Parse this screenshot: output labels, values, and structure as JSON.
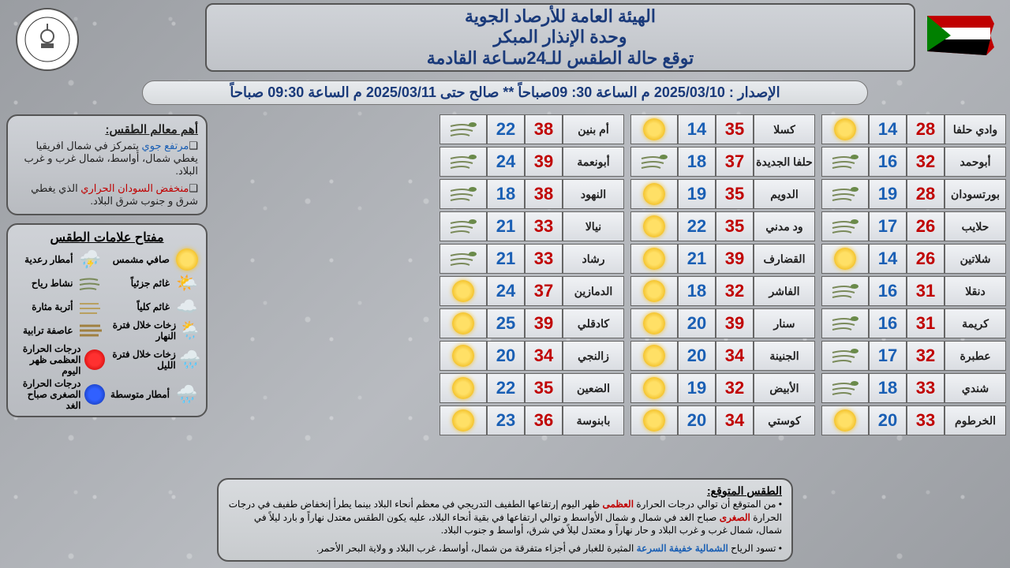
{
  "header": {
    "line1": "الهيئة العامة للأرصاد الجوية",
    "line2": "وحدة الإنذار المبكر",
    "line3": "توقع حالة الطقس للـ24سـاعة القادمة"
  },
  "issue": "الإصدار : 2025/03/10  م الساعة 30: 09صباحاً ** صالح حتى 2025/03/11   م الساعة 09:30 صباحاً",
  "columns": [
    [
      {
        "city": "وادي حلفا",
        "hi": 28,
        "lo": 14,
        "icon": "sun"
      },
      {
        "city": "أبوحمد",
        "hi": 32,
        "lo": 16,
        "icon": "windy"
      },
      {
        "city": "بورتسودان",
        "hi": 28,
        "lo": 19,
        "icon": "windy"
      },
      {
        "city": "حلايب",
        "hi": 26,
        "lo": 17,
        "icon": "windy"
      },
      {
        "city": "شلاتين",
        "hi": 26,
        "lo": 14,
        "icon": "sun"
      },
      {
        "city": "دنقلا",
        "hi": 31,
        "lo": 16,
        "icon": "windy"
      },
      {
        "city": "كريمة",
        "hi": 31,
        "lo": 16,
        "icon": "windy"
      },
      {
        "city": "عطبرة",
        "hi": 32,
        "lo": 17,
        "icon": "windy"
      },
      {
        "city": "شندي",
        "hi": 33,
        "lo": 18,
        "icon": "windy"
      },
      {
        "city": "الخرطوم",
        "hi": 33,
        "lo": 20,
        "icon": "sun"
      }
    ],
    [
      {
        "city": "كسلا",
        "hi": 35,
        "lo": 14,
        "icon": "sun"
      },
      {
        "city": "حلفا الجديدة",
        "hi": 37,
        "lo": 18,
        "icon": "windy"
      },
      {
        "city": "الدويم",
        "hi": 35,
        "lo": 19,
        "icon": "sun"
      },
      {
        "city": "ود مدني",
        "hi": 35,
        "lo": 22,
        "icon": "sun"
      },
      {
        "city": "القضارف",
        "hi": 39,
        "lo": 21,
        "icon": "sun"
      },
      {
        "city": "الفاشر",
        "hi": 32,
        "lo": 18,
        "icon": "sun"
      },
      {
        "city": "سنار",
        "hi": 39,
        "lo": 20,
        "icon": "sun"
      },
      {
        "city": "الجنينة",
        "hi": 34,
        "lo": 20,
        "icon": "sun"
      },
      {
        "city": "الأبيض",
        "hi": 32,
        "lo": 19,
        "icon": "sun"
      },
      {
        "city": "كوستي",
        "hi": 34,
        "lo": 20,
        "icon": "sun"
      }
    ],
    [
      {
        "city": "أم بنين",
        "hi": 38,
        "lo": 22,
        "icon": "windy"
      },
      {
        "city": "أبونعمة",
        "hi": 39,
        "lo": 24,
        "icon": "windy"
      },
      {
        "city": "النهود",
        "hi": 38,
        "lo": 18,
        "icon": "windy"
      },
      {
        "city": "نيالا",
        "hi": 33,
        "lo": 21,
        "icon": "windy"
      },
      {
        "city": "رشاد",
        "hi": 33,
        "lo": 21,
        "icon": "windy"
      },
      {
        "city": "الدمازين",
        "hi": 37,
        "lo": 24,
        "icon": "sun"
      },
      {
        "city": "كادقلي",
        "hi": 39,
        "lo": 25,
        "icon": "sun"
      },
      {
        "city": "زالنجي",
        "hi": 34,
        "lo": 20,
        "icon": "sun"
      },
      {
        "city": "الضعين",
        "hi": 35,
        "lo": 22,
        "icon": "sun"
      },
      {
        "city": "بابنوسة",
        "hi": 36,
        "lo": 23,
        "icon": "sun"
      }
    ]
  ],
  "features": {
    "title": "أهم معالم الطقس:",
    "l1a": "مرتفع جوي",
    "l1b": " يتمركز في شمال افريقيا يغطي شمال، أواسط، شمال غرب و غرب البلاد.",
    "l2a": "منخفض السودان الحراري",
    "l2b": " الذي يغطي شرق و جنوب شرق البلاد."
  },
  "legend": {
    "title": "مفتاح علامات الطقس",
    "items": [
      {
        "label": "صافي مشمس",
        "icon": "sun"
      },
      {
        "label": "أمطار رعدية",
        "icon": "storm"
      },
      {
        "label": "غائم جزئياً",
        "icon": "partcloud"
      },
      {
        "label": "نشاط رياح",
        "icon": "windy"
      },
      {
        "label": "غائم كلياً",
        "icon": "cloud"
      },
      {
        "label": "أتربة مثارة",
        "icon": "dust"
      },
      {
        "label": "زخات خلال فترة النهار",
        "icon": "dayshower"
      },
      {
        "label": "عاصفة ترابية",
        "icon": "duststorm"
      },
      {
        "label": "زخات خلال فترة الليل",
        "icon": "nightshower"
      },
      {
        "label": "درجات الحرارة العظمى ظهر اليوم",
        "icon": "red"
      },
      {
        "label": "أمطار متوسطة",
        "icon": "rain"
      },
      {
        "label": "درجات الحرارة الصغرى صباح الغد",
        "icon": "blue"
      }
    ]
  },
  "forecast": {
    "title": "الطقس المتوقع:",
    "p1a": "من المتوقع أن توالي درجات الحرارة ",
    "p1b": "العظمى",
    "p1c": " ظهر اليوم إرتفاعها الطفيف التدريجي في معظم أنحاء البلاد بينما يطرأ إنخفاض طفيف في درجات الحرارة ",
    "p1d": "الصغرى",
    "p1e": " صباح الغد في شمال و شمال الأواسط و توالي ارتفاعها في بقية أنحاء البلاد، عليه يكون الطقس معتدل نهاراً و بارد ليلاً في شمال، شمال غرب و غرب البلاد و حار نهاراً و معتدل ليلاً في شرق، أواسط و جنوب البلاد.",
    "p2a": "تسود الرياح ",
    "p2b": "الشمالية خفيفة السرعة",
    "p2c": " المثيرة للغبار في أجزاء متفرقة من شمال، أواسط، غرب البلاد و ولاية البحر الأحمر."
  }
}
